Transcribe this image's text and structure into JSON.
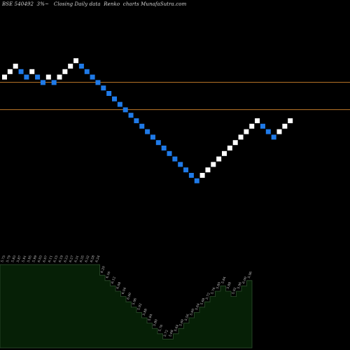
{
  "chart_data": {
    "type": "renko",
    "title": "BSE 540492  3%~   Closing Daily data  Renko  charts MunafaSutra.com",
    "reference_lines": [
      {
        "name": "upper-reference-line",
        "price": 13,
        "color": "#c07a2a"
      },
      {
        "name": "lower-reference-line",
        "price": 8,
        "color": "#c07a2a"
      }
    ],
    "bricks": [
      {
        "level": 13,
        "dir": "up"
      },
      {
        "level": 14,
        "dir": "up"
      },
      {
        "level": 15,
        "dir": "up"
      },
      {
        "level": 14,
        "dir": "down"
      },
      {
        "level": 13,
        "dir": "down"
      },
      {
        "level": 14,
        "dir": "up"
      },
      {
        "level": 13,
        "dir": "down"
      },
      {
        "level": 12,
        "dir": "down"
      },
      {
        "level": 13,
        "dir": "up"
      },
      {
        "level": 12,
        "dir": "down"
      },
      {
        "level": 13,
        "dir": "up"
      },
      {
        "level": 14,
        "dir": "up"
      },
      {
        "level": 15,
        "dir": "up"
      },
      {
        "level": 16,
        "dir": "up"
      },
      {
        "level": 15,
        "dir": "down"
      },
      {
        "level": 14,
        "dir": "down"
      },
      {
        "level": 13,
        "dir": "down"
      },
      {
        "level": 12,
        "dir": "down"
      },
      {
        "level": 11,
        "dir": "down"
      },
      {
        "level": 10,
        "dir": "down"
      },
      {
        "level": 9,
        "dir": "down"
      },
      {
        "level": 8,
        "dir": "down"
      },
      {
        "level": 7,
        "dir": "down"
      },
      {
        "level": 6,
        "dir": "down"
      },
      {
        "level": 5,
        "dir": "down"
      },
      {
        "level": 4,
        "dir": "down"
      },
      {
        "level": 3,
        "dir": "down"
      },
      {
        "level": 2,
        "dir": "down"
      },
      {
        "level": 1,
        "dir": "down"
      },
      {
        "level": 0,
        "dir": "down"
      },
      {
        "level": -1,
        "dir": "down"
      },
      {
        "level": -2,
        "dir": "down"
      },
      {
        "level": -3,
        "dir": "down"
      },
      {
        "level": -4,
        "dir": "down"
      },
      {
        "level": -5,
        "dir": "down"
      },
      {
        "level": -6,
        "dir": "down"
      },
      {
        "level": -5,
        "dir": "up"
      },
      {
        "level": -4,
        "dir": "up"
      },
      {
        "level": -3,
        "dir": "up"
      },
      {
        "level": -2,
        "dir": "up"
      },
      {
        "level": -1,
        "dir": "up"
      },
      {
        "level": 0,
        "dir": "up"
      },
      {
        "level": 1,
        "dir": "up"
      },
      {
        "level": 2,
        "dir": "up"
      },
      {
        "level": 3,
        "dir": "up"
      },
      {
        "level": 4,
        "dir": "up"
      },
      {
        "level": 5,
        "dir": "up"
      },
      {
        "level": 4,
        "dir": "down"
      },
      {
        "level": 3,
        "dir": "down"
      },
      {
        "level": 2,
        "dir": "down"
      },
      {
        "level": 3,
        "dir": "up"
      },
      {
        "level": 4,
        "dir": "up"
      },
      {
        "level": 5,
        "dir": "up"
      }
    ],
    "brick_labels": [
      "5.75",
      "5.79",
      "5.83",
      "5.87",
      "5.91",
      "5.95",
      "5.99",
      "6.03",
      "6.07",
      "6.11",
      "6.15",
      "6.19",
      "6.23",
      "6.27",
      "6.31",
      "6.35",
      "6.32",
      "6.28",
      "6.24",
      "6.20",
      "6.16",
      "6.12",
      "6.08",
      "6.04",
      "6.00",
      "5.96",
      "5.92",
      "5.88",
      "5.84",
      "5.80",
      "5.76",
      "5.72",
      "5.68",
      "5.64",
      "5.60",
      "5.56",
      "5.60",
      "5.64",
      "5.68",
      "5.72",
      "5.76",
      "5.80",
      "5.84",
      "5.88",
      "5.92",
      "5.96",
      "6.00",
      "5.96",
      "5.92",
      "5.88",
      "5.92",
      "5.96",
      "6.00"
    ],
    "volume_area": [
      {
        "level": 14
      },
      {
        "level": 14
      },
      {
        "level": 14
      },
      {
        "level": 14
      },
      {
        "level": 14
      },
      {
        "level": 14
      },
      {
        "level": 14
      },
      {
        "level": 14
      },
      {
        "level": 14
      },
      {
        "level": 14
      },
      {
        "level": 14
      },
      {
        "level": 14
      },
      {
        "level": 14
      },
      {
        "level": 14
      },
      {
        "level": 14
      },
      {
        "level": 14
      },
      {
        "level": 14
      },
      {
        "level": 14
      },
      {
        "level": 14
      },
      {
        "level": 12
      },
      {
        "level": 11
      },
      {
        "level": 10
      },
      {
        "level": 9
      },
      {
        "level": 8
      },
      {
        "level": 7
      },
      {
        "level": 6
      },
      {
        "level": 5
      },
      {
        "level": 4
      },
      {
        "level": 3
      },
      {
        "level": 2
      },
      {
        "level": 1
      },
      {
        "level": 0
      },
      {
        "level": 0
      },
      {
        "level": 1
      },
      {
        "level": 2
      },
      {
        "level": 3
      },
      {
        "level": 4
      },
      {
        "level": 5
      },
      {
        "level": 6
      },
      {
        "level": 7
      },
      {
        "level": 8
      },
      {
        "level": 9
      },
      {
        "level": 10
      },
      {
        "level": 9
      },
      {
        "level": 8
      },
      {
        "level": 9
      },
      {
        "level": 10
      },
      {
        "level": 11
      }
    ],
    "colors": {
      "up_brick": "#ffffff",
      "down_brick": "#1f7ae8",
      "volume_fill": "#062006",
      "volume_edge": "#2f4f2f",
      "reference_line": "#c07a2a",
      "background": "#000000"
    }
  }
}
